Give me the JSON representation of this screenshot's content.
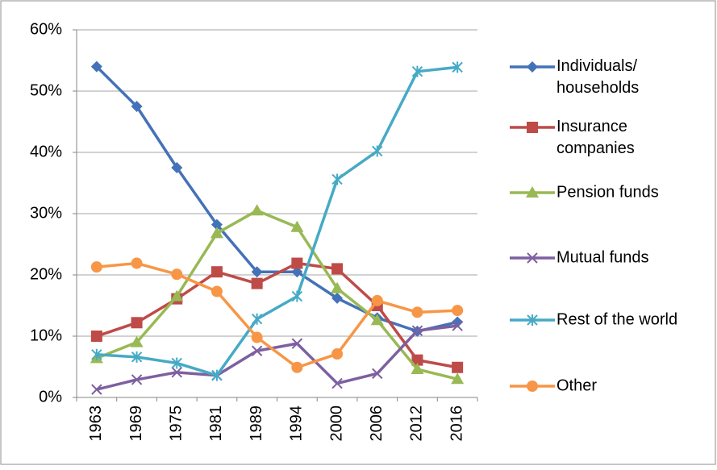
{
  "chart_data": {
    "type": "line",
    "categories": [
      "1963",
      "1969",
      "1975",
      "1981",
      "1989",
      "1994",
      "2000",
      "2006",
      "2012",
      "2016"
    ],
    "series": [
      {
        "name": "Individuals/ households",
        "color": "#4472b8",
        "marker": "diamond",
        "values": [
          54,
          47.5,
          37.5,
          28.2,
          20.5,
          20.5,
          16.2,
          13,
          10.8,
          12.3
        ]
      },
      {
        "name": "Insurance companies",
        "color": "#be4b48",
        "marker": "square",
        "values": [
          10,
          12.2,
          16.1,
          20.5,
          18.6,
          21.9,
          21,
          15,
          6.1,
          4.9
        ]
      },
      {
        "name": "Pension funds",
        "color": "#98b954",
        "marker": "triangle",
        "values": [
          6.4,
          9,
          16.5,
          26.8,
          30.5,
          27.8,
          17.8,
          12.6,
          4.6,
          3
        ]
      },
      {
        "name": "Mutual funds",
        "color": "#7d60a0",
        "marker": "x",
        "values": [
          1.3,
          2.9,
          4.1,
          3.6,
          7.6,
          8.8,
          2.3,
          3.9,
          10.9,
          11.7
        ]
      },
      {
        "name": "Rest of the world",
        "color": "#46aac5",
        "marker": "star",
        "values": [
          7,
          6.6,
          5.6,
          3.6,
          12.8,
          16.5,
          35.6,
          40.2,
          53.2,
          53.9
        ]
      },
      {
        "name": "Other",
        "color": "#f79646",
        "marker": "circle",
        "values": [
          21.3,
          21.9,
          20.1,
          17.3,
          9.8,
          4.9,
          7.1,
          15.8,
          13.9,
          14.2
        ]
      }
    ],
    "ylim": [
      0,
      60
    ],
    "yticks": [
      {
        "value": 0,
        "label": "0%"
      },
      {
        "value": 10,
        "label": "10%"
      },
      {
        "value": 20,
        "label": "20%"
      },
      {
        "value": 30,
        "label": "30%"
      },
      {
        "value": 40,
        "label": "40%"
      },
      {
        "value": 50,
        "label": "50%"
      },
      {
        "value": 60,
        "label": "60%"
      }
    ],
    "grid": true,
    "legend": "right"
  }
}
